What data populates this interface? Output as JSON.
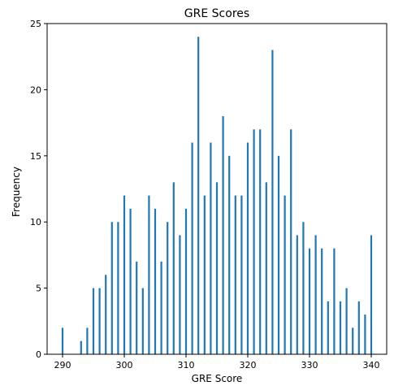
{
  "chart_data": {
    "type": "bar",
    "title": "GRE Scores",
    "xlabel": "GRE Score",
    "ylabel": "Frequency",
    "xlim": [
      287.5,
      342.5
    ],
    "ylim": [
      0,
      25
    ],
    "x_ticks": [
      290,
      300,
      310,
      320,
      330,
      340
    ],
    "y_ticks": [
      0,
      5,
      10,
      15,
      20,
      25
    ],
    "grid": false,
    "bar_color": "#1f77b4",
    "x": [
      290,
      293,
      294,
      295,
      296,
      297,
      298,
      299,
      300,
      301,
      302,
      303,
      304,
      305,
      306,
      307,
      308,
      309,
      310,
      311,
      312,
      313,
      314,
      315,
      316,
      317,
      318,
      319,
      320,
      321,
      322,
      323,
      324,
      325,
      326,
      327,
      328,
      329,
      330,
      331,
      332,
      333,
      334,
      335,
      336,
      337,
      338,
      339,
      340
    ],
    "values": [
      2,
      1,
      2,
      5,
      5,
      6,
      10,
      10,
      12,
      11,
      7,
      5,
      12,
      11,
      7,
      10,
      13,
      9,
      11,
      16,
      24,
      12,
      16,
      13,
      18,
      15,
      12,
      12,
      16,
      17,
      17,
      13,
      23,
      15,
      12,
      17,
      9,
      10,
      8,
      9,
      8,
      4,
      8,
      4,
      5,
      2,
      4,
      3,
      9
    ]
  }
}
